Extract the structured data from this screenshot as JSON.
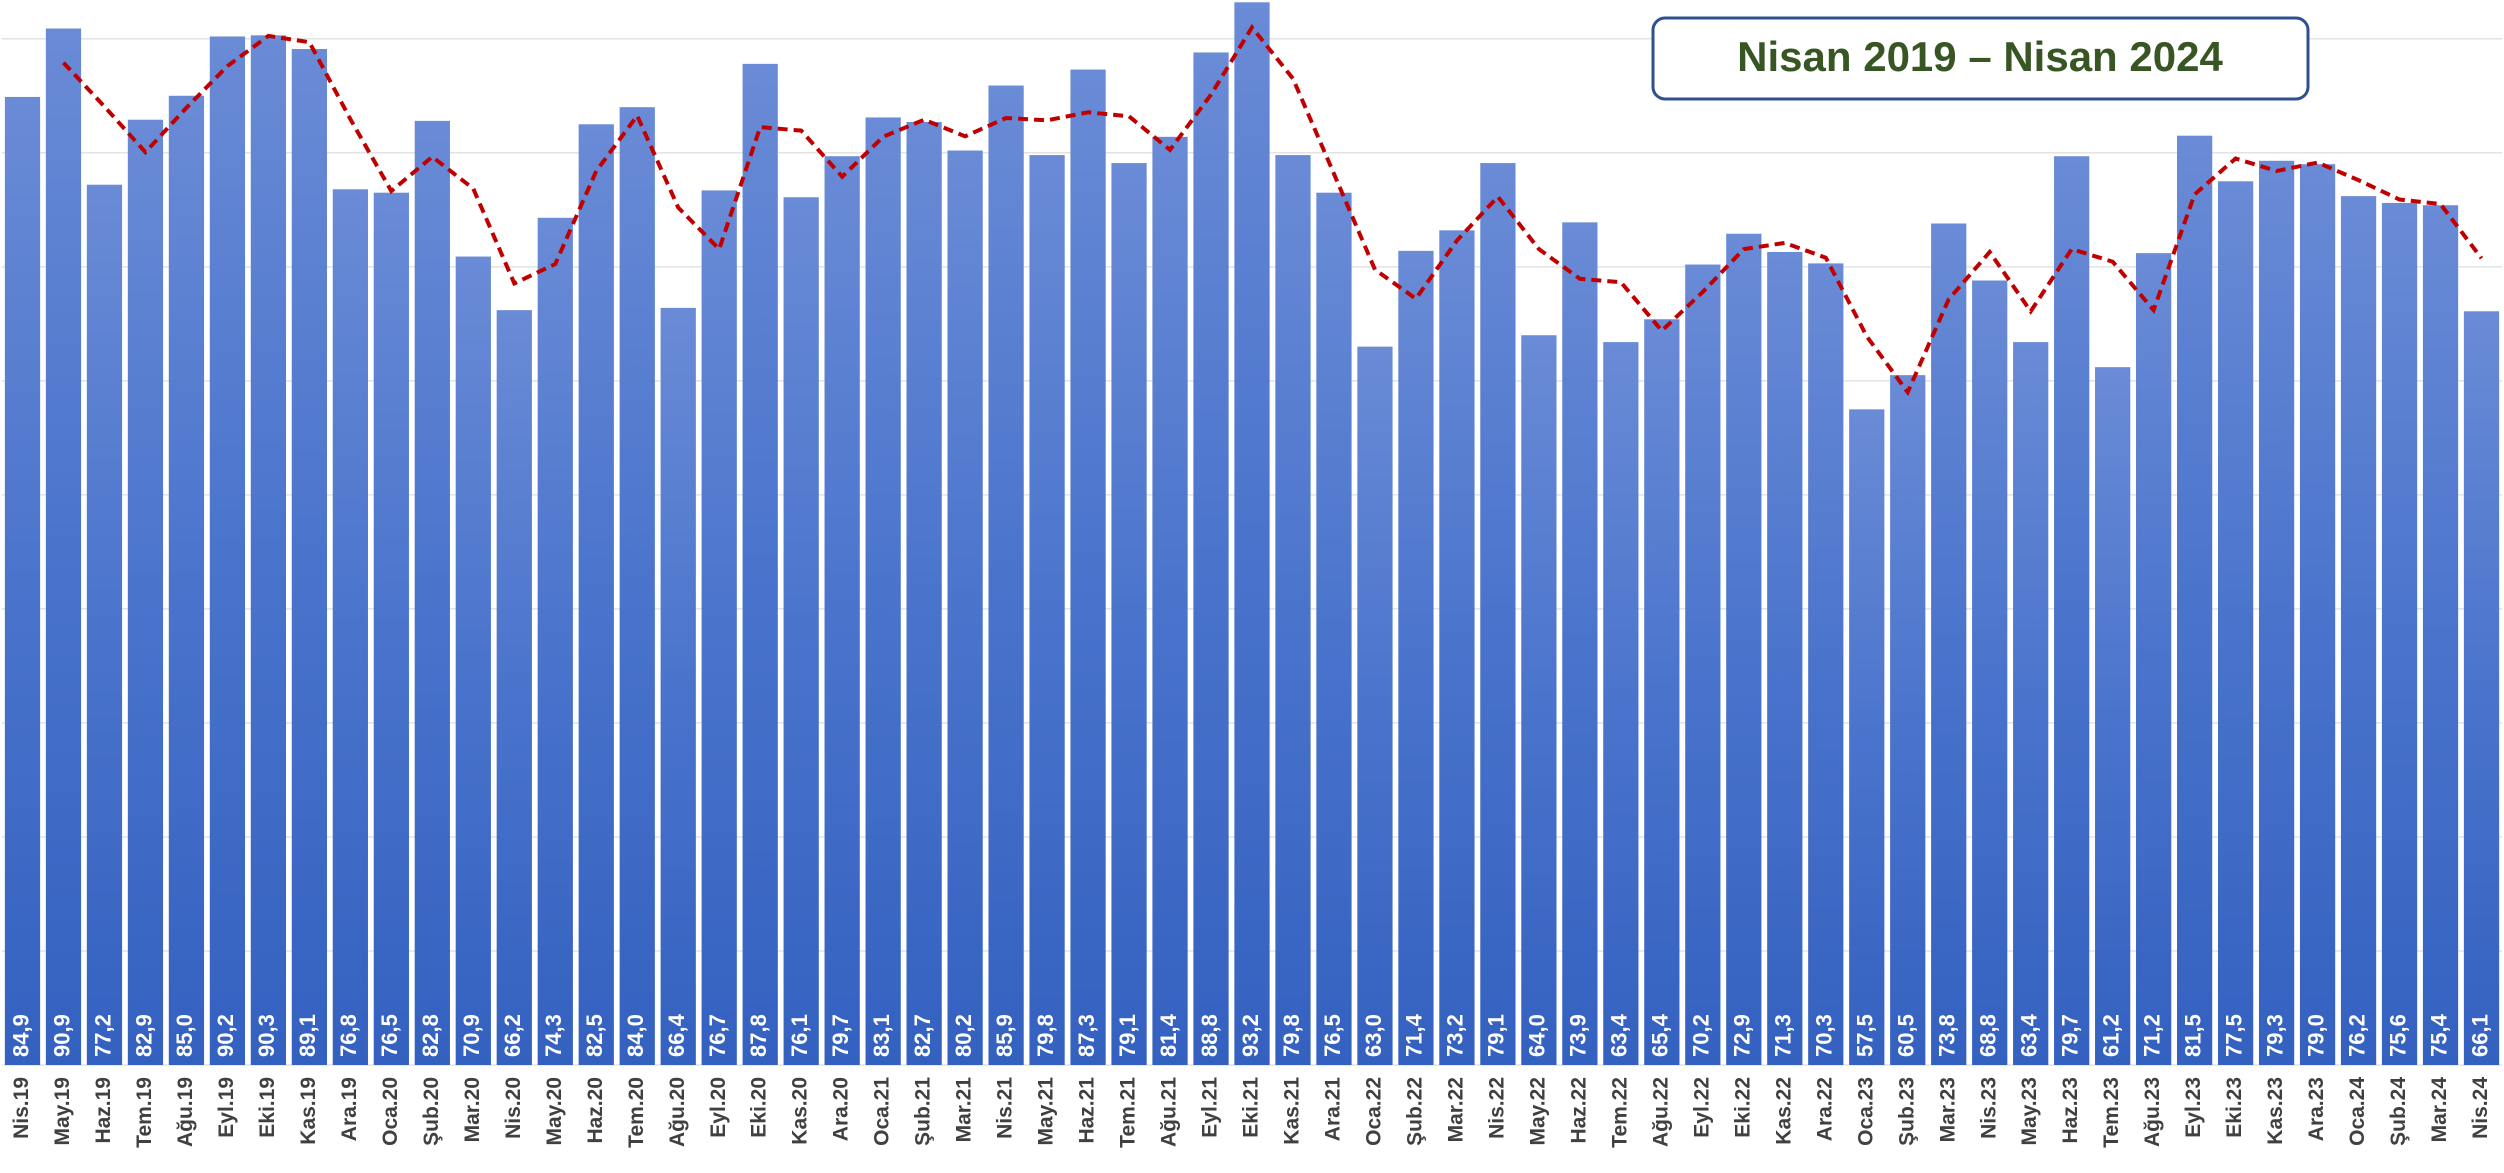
{
  "chart_data": {
    "type": "bar",
    "title": "Nisan 2019 – Nisan 2024",
    "categories": [
      "Nis.19",
      "May.19",
      "Haz.19",
      "Tem.19",
      "Ağu.19",
      "Eyl.19",
      "Eki.19",
      "Kas.19",
      "Ara.19",
      "Oca.20",
      "Şub.20",
      "Mar.20",
      "Nis.20",
      "May.20",
      "Haz.20",
      "Tem.20",
      "Ağu.20",
      "Eyl.20",
      "Eki.20",
      "Kas.20",
      "Ara.20",
      "Oca.21",
      "Şub.21",
      "Mar.21",
      "Nis.21",
      "May.21",
      "Haz.21",
      "Tem.21",
      "Ağu.21",
      "Eyl.21",
      "Eki.21",
      "Kas.21",
      "Ara.21",
      "Oca.22",
      "Şub.22",
      "Mar.22",
      "Nis.22",
      "May.22",
      "Haz.22",
      "Tem.22",
      "Ağu.22",
      "Eyl.22",
      "Eki.22",
      "Kas.22",
      "Ara.22",
      "Oca.23",
      "Şub.23",
      "Mar.23",
      "Nis.23",
      "May.23",
      "Haz.23",
      "Tem.23",
      "Ağu.23",
      "Eyl.23",
      "Eki.23",
      "Kas.23",
      "Ara.23",
      "Oca.24",
      "Şub.24",
      "Mar.24",
      "Nis.24"
    ],
    "values": [
      84.9,
      90.9,
      77.2,
      82.9,
      85.0,
      90.2,
      90.3,
      89.1,
      76.8,
      76.5,
      82.8,
      70.9,
      66.2,
      74.3,
      82.5,
      84.0,
      66.4,
      76.7,
      87.8,
      76.1,
      79.7,
      83.1,
      82.7,
      80.2,
      85.9,
      79.8,
      87.3,
      79.1,
      81.4,
      88.8,
      93.2,
      79.8,
      76.5,
      63.0,
      71.4,
      73.2,
      79.1,
      64.0,
      73.9,
      63.4,
      65.4,
      70.2,
      72.9,
      71.3,
      70.3,
      57.5,
      60.5,
      73.8,
      68.8,
      63.4,
      79.7,
      61.2,
      71.2,
      81.5,
      77.5,
      79.3,
      79.0,
      76.2,
      75.6,
      75.4,
      66.1
    ],
    "value_labels": [
      "84,9",
      "90,9",
      "77,2",
      "82,9",
      "85,0",
      "90,2",
      "90,3",
      "89,1",
      "76,8",
      "76,5",
      "82,8",
      "70,9",
      "66,2",
      "74,3",
      "82,5",
      "84,0",
      "66,4",
      "76,7",
      "87,8",
      "76,1",
      "79,7",
      "83,1",
      "82,7",
      "80,2",
      "85,9",
      "79,8",
      "87,3",
      "79,1",
      "81,4",
      "88,8",
      "93,2",
      "79,8",
      "76,5",
      "63,0",
      "71,4",
      "73,2",
      "79,1",
      "64,0",
      "73,9",
      "63,4",
      "65,4",
      "70,2",
      "72,9",
      "71,3",
      "70,3",
      "57,5",
      "60,5",
      "73,8",
      "68,8",
      "63,4",
      "79,7",
      "61,2",
      "71,2",
      "81,5",
      "77,5",
      "79,3",
      "79,0",
      "76,2",
      "75,6",
      "75,4",
      "66,1"
    ],
    "color": "#4472c4",
    "trend": {
      "color": "#c00000",
      "values": [
        null,
        87.9,
        84.05,
        80.05,
        83.95,
        87.6,
        90.25,
        89.7,
        82.95,
        76.65,
        79.65,
        76.85,
        68.55,
        70.25,
        78.4,
        83.25,
        75.2,
        71.55,
        82.25,
        81.95,
        77.9,
        81.4,
        82.9,
        81.45,
        83.05,
        82.85,
        83.55,
        83.2,
        80.25,
        85.1,
        91.0,
        86.5,
        78.15,
        69.75,
        67.2,
        72.3,
        76.15,
        71.55,
        68.95,
        68.65,
        64.4,
        67.8,
        71.55,
        72.1,
        70.8,
        63.9,
        59.0,
        67.15,
        71.3,
        66.1,
        71.55,
        70.45,
        66.2,
        76.35,
        79.5,
        78.4,
        79.15,
        77.6,
        75.9,
        75.5,
        70.75
      ]
    },
    "ylim": [
      0,
      93.4
    ],
    "yticks": [
      0,
      10,
      20,
      30,
      40,
      50,
      60,
      70,
      80,
      90
    ],
    "grid": true
  }
}
